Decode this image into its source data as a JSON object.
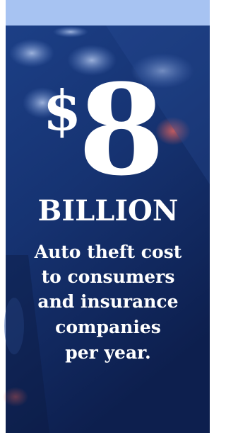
{
  "headline": {
    "symbol": "$",
    "number": "8",
    "unit": "BILLION"
  },
  "caption": [
    "Auto theft cost",
    "to consumers",
    "and insurance",
    "companies",
    "per year."
  ]
}
